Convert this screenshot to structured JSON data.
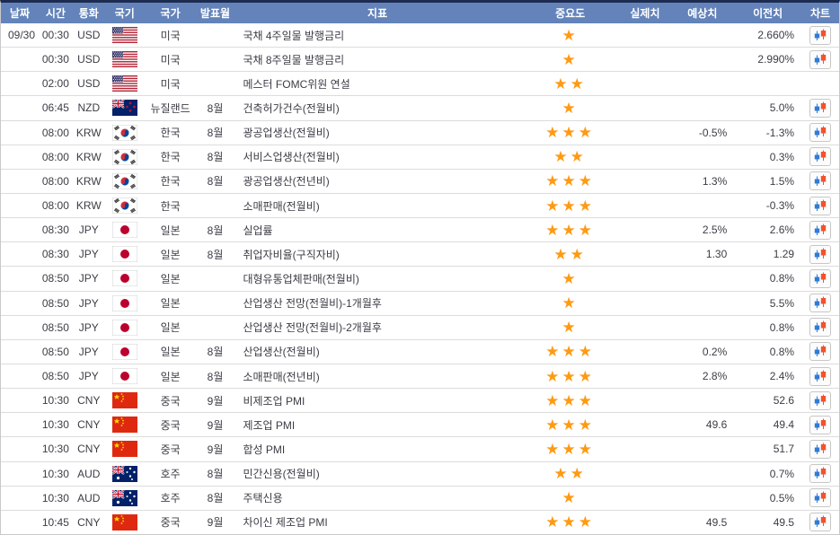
{
  "colors": {
    "header_bg": "#6383ba",
    "header_text": "#ffffff",
    "top_strip": "#1c2c50",
    "row_text": "#3c3c46",
    "row_separator": "#dcdcdc",
    "star": "#fe9a13",
    "candle_blue": "#2e7cd8",
    "candle_red": "#f4512c"
  },
  "table": {
    "headers": {
      "date": "날짜",
      "time": "시간",
      "currency": "통화",
      "flag": "국기",
      "country": "국가",
      "month": "발표월",
      "indicator": "지표",
      "importance": "중요도",
      "actual": "실제치",
      "forecast": "예상치",
      "previous": "이전치",
      "chart": "차트"
    },
    "rows": [
      {
        "date": "09/30",
        "time": "00:30",
        "currency": "USD",
        "flag": "us",
        "country": "미국",
        "month": "",
        "indicator": "국채 4주일물 발행금리",
        "importance": 1,
        "actual": "",
        "forecast": "",
        "previous": "2.660%",
        "chart": true
      },
      {
        "date": "",
        "time": "00:30",
        "currency": "USD",
        "flag": "us",
        "country": "미국",
        "month": "",
        "indicator": "국채 8주일물 발행금리",
        "importance": 1,
        "actual": "",
        "forecast": "",
        "previous": "2.990%",
        "chart": true
      },
      {
        "date": "",
        "time": "02:00",
        "currency": "USD",
        "flag": "us",
        "country": "미국",
        "month": "",
        "indicator": "메스터 FOMC위원 연설",
        "importance": 2,
        "actual": "",
        "forecast": "",
        "previous": "",
        "chart": false
      },
      {
        "date": "",
        "time": "06:45",
        "currency": "NZD",
        "flag": "nz",
        "country": "뉴질랜드",
        "month": "8월",
        "indicator": "건축허가건수(전월비)",
        "importance": 1,
        "actual": "",
        "forecast": "",
        "previous": "5.0%",
        "chart": true
      },
      {
        "date": "",
        "time": "08:00",
        "currency": "KRW",
        "flag": "kr",
        "country": "한국",
        "month": "8월",
        "indicator": "광공업생산(전월비)",
        "importance": 3,
        "actual": "",
        "forecast": "-0.5%",
        "previous": "-1.3%",
        "chart": true
      },
      {
        "date": "",
        "time": "08:00",
        "currency": "KRW",
        "flag": "kr",
        "country": "한국",
        "month": "8월",
        "indicator": "서비스업생산(전월비)",
        "importance": 2,
        "actual": "",
        "forecast": "",
        "previous": "0.3%",
        "chart": true
      },
      {
        "date": "",
        "time": "08:00",
        "currency": "KRW",
        "flag": "kr",
        "country": "한국",
        "month": "8월",
        "indicator": "광공업생산(전년비)",
        "importance": 3,
        "actual": "",
        "forecast": "1.3%",
        "previous": "1.5%",
        "chart": true
      },
      {
        "date": "",
        "time": "08:00",
        "currency": "KRW",
        "flag": "kr",
        "country": "한국",
        "month": "",
        "indicator": "소매판매(전월비)",
        "importance": 3,
        "actual": "",
        "forecast": "",
        "previous": "-0.3%",
        "chart": true
      },
      {
        "date": "",
        "time": "08:30",
        "currency": "JPY",
        "flag": "jp",
        "country": "일본",
        "month": "8월",
        "indicator": "실업률",
        "importance": 3,
        "actual": "",
        "forecast": "2.5%",
        "previous": "2.6%",
        "chart": true
      },
      {
        "date": "",
        "time": "08:30",
        "currency": "JPY",
        "flag": "jp",
        "country": "일본",
        "month": "8월",
        "indicator": "취업자비율(구직자비)",
        "importance": 2,
        "actual": "",
        "forecast": "1.30",
        "previous": "1.29",
        "chart": true
      },
      {
        "date": "",
        "time": "08:50",
        "currency": "JPY",
        "flag": "jp",
        "country": "일본",
        "month": "",
        "indicator": "대형유통업체판매(전월비)",
        "importance": 1,
        "actual": "",
        "forecast": "",
        "previous": "0.8%",
        "chart": true
      },
      {
        "date": "",
        "time": "08:50",
        "currency": "JPY",
        "flag": "jp",
        "country": "일본",
        "month": "",
        "indicator": "산업생산 전망(전월비)-1개월후",
        "importance": 1,
        "actual": "",
        "forecast": "",
        "previous": "5.5%",
        "chart": true
      },
      {
        "date": "",
        "time": "08:50",
        "currency": "JPY",
        "flag": "jp",
        "country": "일본",
        "month": "",
        "indicator": "산업생산 전망(전월비)-2개월후",
        "importance": 1,
        "actual": "",
        "forecast": "",
        "previous": "0.8%",
        "chart": true
      },
      {
        "date": "",
        "time": "08:50",
        "currency": "JPY",
        "flag": "jp",
        "country": "일본",
        "month": "8월",
        "indicator": "산업생산(전월비)",
        "importance": 3,
        "actual": "",
        "forecast": "0.2%",
        "previous": "0.8%",
        "chart": true
      },
      {
        "date": "",
        "time": "08:50",
        "currency": "JPY",
        "flag": "jp",
        "country": "일본",
        "month": "8월",
        "indicator": "소매판매(전년비)",
        "importance": 3,
        "actual": "",
        "forecast": "2.8%",
        "previous": "2.4%",
        "chart": true
      },
      {
        "date": "",
        "time": "10:30",
        "currency": "CNY",
        "flag": "cn",
        "country": "중국",
        "month": "9월",
        "indicator": "비제조업 PMI",
        "importance": 3,
        "actual": "",
        "forecast": "",
        "previous": "52.6",
        "chart": true
      },
      {
        "date": "",
        "time": "10:30",
        "currency": "CNY",
        "flag": "cn",
        "country": "중국",
        "month": "9월",
        "indicator": "제조업 PMI",
        "importance": 3,
        "actual": "",
        "forecast": "49.6",
        "previous": "49.4",
        "chart": true
      },
      {
        "date": "",
        "time": "10:30",
        "currency": "CNY",
        "flag": "cn",
        "country": "중국",
        "month": "9월",
        "indicator": "합성 PMI",
        "importance": 3,
        "actual": "",
        "forecast": "",
        "previous": "51.7",
        "chart": true
      },
      {
        "date": "",
        "time": "10:30",
        "currency": "AUD",
        "flag": "au",
        "country": "호주",
        "month": "8월",
        "indicator": "민간신용(전월비)",
        "importance": 2,
        "actual": "",
        "forecast": "",
        "previous": "0.7%",
        "chart": true
      },
      {
        "date": "",
        "time": "10:30",
        "currency": "AUD",
        "flag": "au",
        "country": "호주",
        "month": "8월",
        "indicator": "주택신용",
        "importance": 1,
        "actual": "",
        "forecast": "",
        "previous": "0.5%",
        "chart": true
      },
      {
        "date": "",
        "time": "10:45",
        "currency": "CNY",
        "flag": "cn",
        "country": "중국",
        "month": "9월",
        "indicator": "차이신 제조업 PMI",
        "importance": 3,
        "actual": "",
        "forecast": "49.5",
        "previous": "49.5",
        "chart": true
      }
    ]
  }
}
